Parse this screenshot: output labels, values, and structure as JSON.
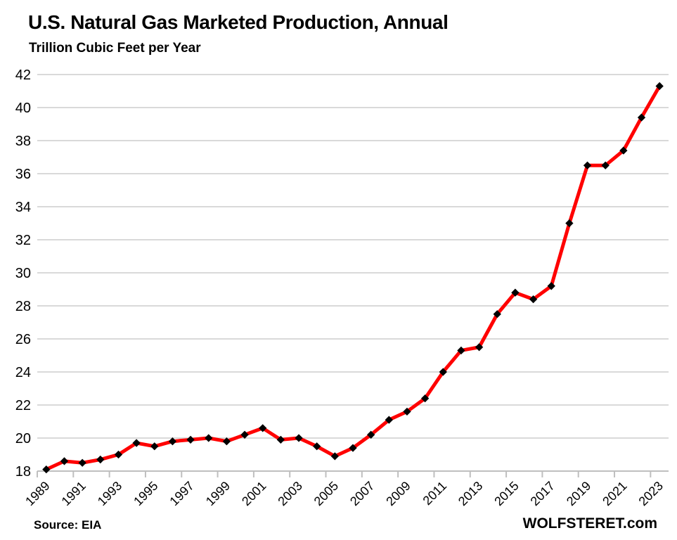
{
  "header": {
    "title": "U.S. Natural Gas Marketed Production, Annual",
    "subtitle": "Trillion Cubic Feet per Year"
  },
  "footer": {
    "source_label": "Source: EIA",
    "watermark": "WOLFSTERET.com"
  },
  "colors": {
    "line": "#ff0000",
    "marker": "#000000",
    "grid": "#d9d9d9",
    "axis": "#bfbfbf",
    "text": "#000000"
  },
  "chart_data": {
    "type": "line",
    "title": "U.S. Natural Gas Marketed Production, Annual",
    "subtitle": "Trillion Cubic Feet per Year",
    "xlabel": "",
    "ylabel": "Trillion Cubic Feet per Year",
    "x": [
      1989,
      1990,
      1991,
      1992,
      1993,
      1994,
      1995,
      1996,
      1997,
      1998,
      1999,
      2000,
      2001,
      2002,
      2003,
      2004,
      2005,
      2006,
      2007,
      2008,
      2009,
      2010,
      2011,
      2012,
      2013,
      2014,
      2015,
      2016,
      2017,
      2018,
      2019,
      2020,
      2021,
      2022,
      2023
    ],
    "series": [
      {
        "name": "U.S. natural gas marketed production",
        "color": "#ff0000",
        "marker": "diamond",
        "marker_color": "#000000",
        "values": [
          18.1,
          18.6,
          18.5,
          18.7,
          19.0,
          19.7,
          19.5,
          19.8,
          19.9,
          20.0,
          19.8,
          20.2,
          20.6,
          19.9,
          20.0,
          19.5,
          18.9,
          19.4,
          20.2,
          21.1,
          21.6,
          22.4,
          24.0,
          25.3,
          25.5,
          27.5,
          28.8,
          28.4,
          29.2,
          33.0,
          36.5,
          36.5,
          37.4,
          39.4,
          41.3
        ]
      }
    ],
    "ylim": [
      18,
      42
    ],
    "yticks": [
      18,
      20,
      22,
      24,
      26,
      28,
      30,
      32,
      34,
      36,
      38,
      40,
      42
    ],
    "xtick_labels": [
      "1989",
      "1991",
      "1993",
      "1995",
      "1997",
      "1999",
      "2001",
      "2003",
      "2005",
      "2007",
      "2009",
      "2011",
      "2013",
      "2015",
      "2017",
      "2019",
      "2021",
      "2023"
    ],
    "grid": "horizontal",
    "legend": "none"
  }
}
